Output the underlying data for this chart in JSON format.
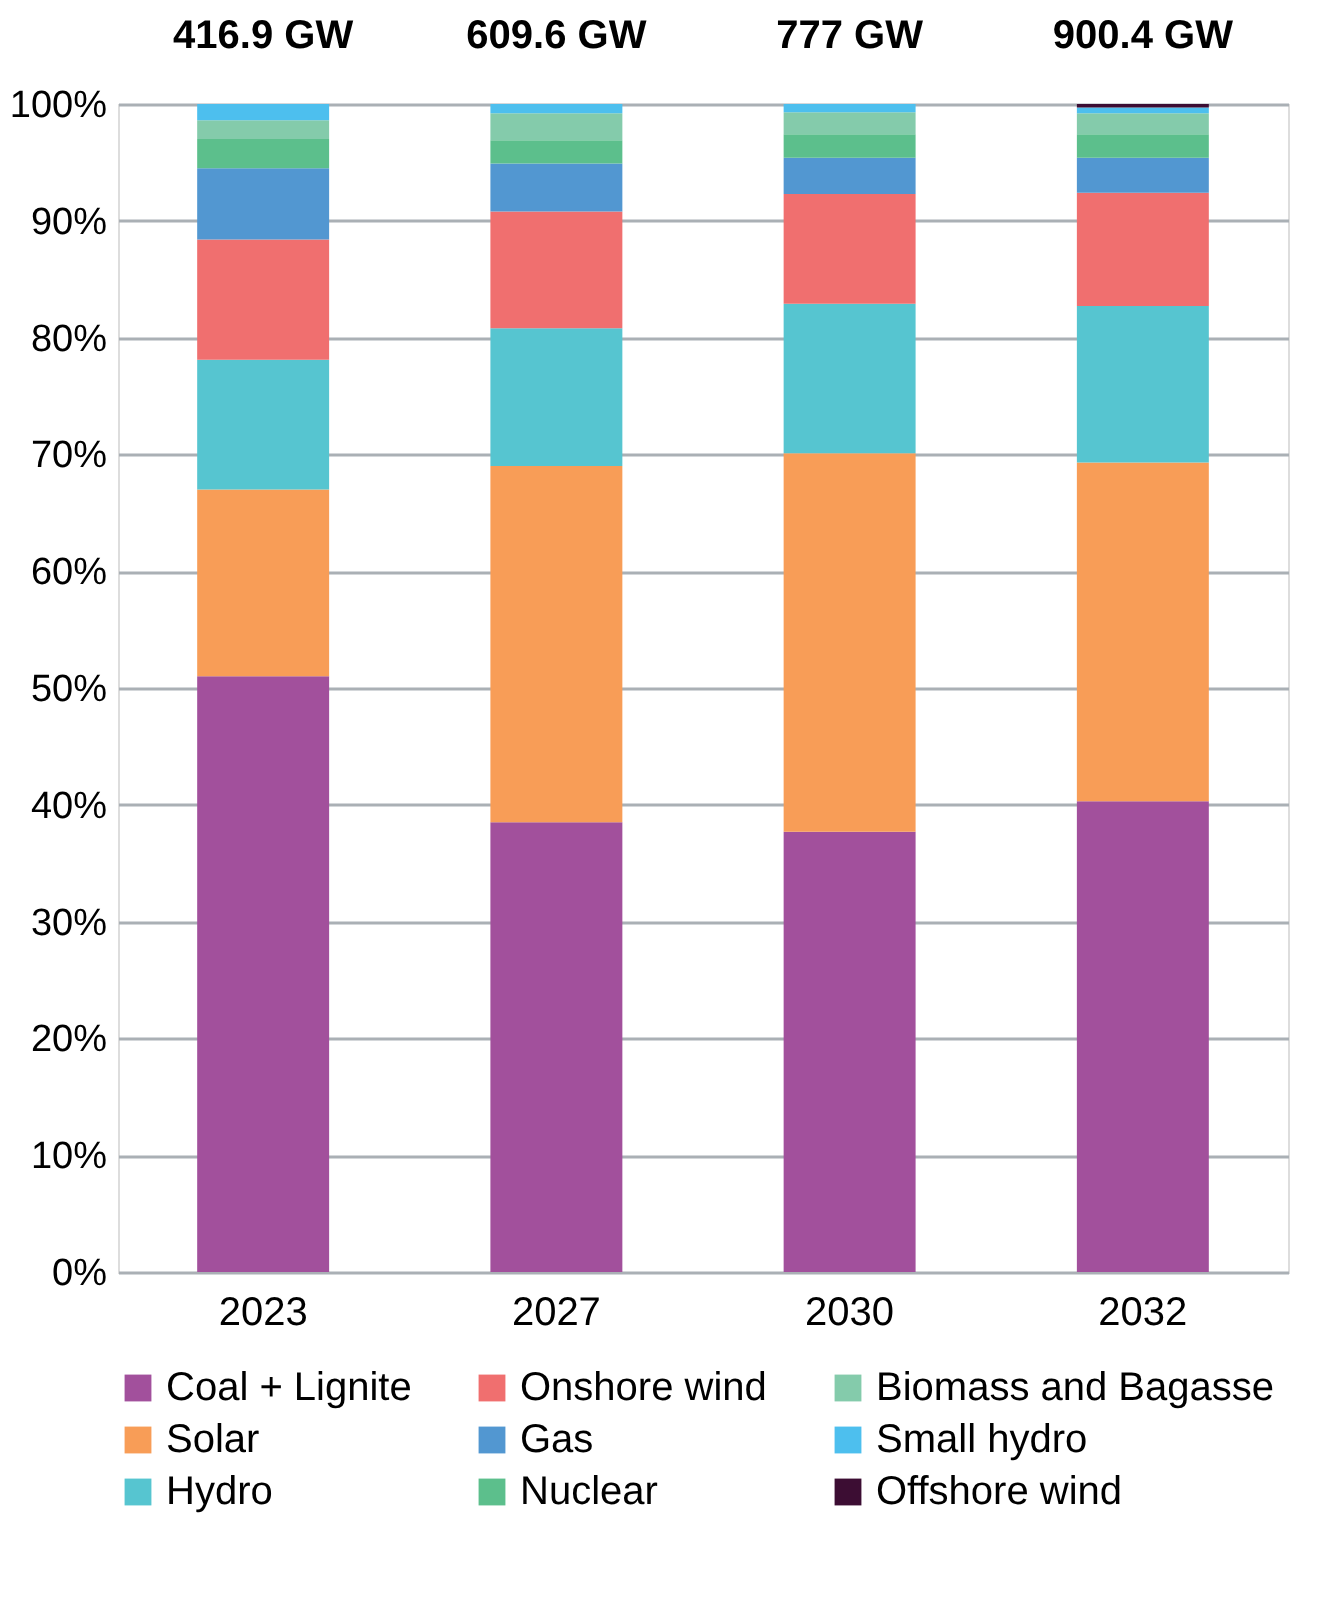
{
  "chart_data": {
    "type": "bar",
    "stacked": true,
    "categories": [
      "2023",
      "2027",
      "2030",
      "2032"
    ],
    "series": [
      {
        "name": "Coal + Lignite",
        "color": "#a2509c",
        "values": [
          51,
          38.5,
          37.7,
          40.3
        ]
      },
      {
        "name": "Solar",
        "color": "#f89d57",
        "values": [
          16,
          30.5,
          32.4,
          29
        ]
      },
      {
        "name": "Hydro",
        "color": "#56c5d0",
        "values": [
          11.1,
          11.8,
          12.8,
          13.4
        ]
      },
      {
        "name": "Onshore wind",
        "color": "#f06f6f",
        "values": [
          10.3,
          10,
          9.4,
          9.7
        ]
      },
      {
        "name": "Gas",
        "color": "#5297d1",
        "values": [
          6.1,
          4.1,
          3.1,
          3
        ]
      },
      {
        "name": "Nuclear",
        "color": "#5cbf8c",
        "values": [
          2.5,
          2,
          2,
          2
        ]
      },
      {
        "name": "Biomass and Bagasse",
        "color": "#84cbab",
        "values": [
          1.6,
          2.3,
          1.9,
          1.8
        ]
      },
      {
        "name": "Small hydro",
        "color": "#4dbfee",
        "values": [
          1.4,
          0.8,
          0.7,
          0.5
        ]
      },
      {
        "name": "Offshore wind",
        "color": "#3c0d33",
        "values": [
          0,
          0,
          0,
          0.3
        ]
      }
    ],
    "annotations": [
      "416.9 GW",
      "609.6 GW",
      "777 GW",
      "900.4 GW"
    ],
    "ylim": [
      0,
      100
    ],
    "yticks": [
      {
        "value": 0,
        "label": "0%"
      },
      {
        "value": 10,
        "label": "10%"
      },
      {
        "value": 20,
        "label": "20%"
      },
      {
        "value": 30,
        "label": "30%"
      },
      {
        "value": 40,
        "label": "40%"
      },
      {
        "value": 50,
        "label": "50%"
      },
      {
        "value": 60,
        "label": "60%"
      },
      {
        "value": 70,
        "label": "70%"
      },
      {
        "value": 80,
        "label": "80%"
      },
      {
        "value": 90,
        "label": "90%"
      },
      {
        "value": 100,
        "label": "100%"
      }
    ],
    "grid": "y",
    "legend": "bottom"
  }
}
